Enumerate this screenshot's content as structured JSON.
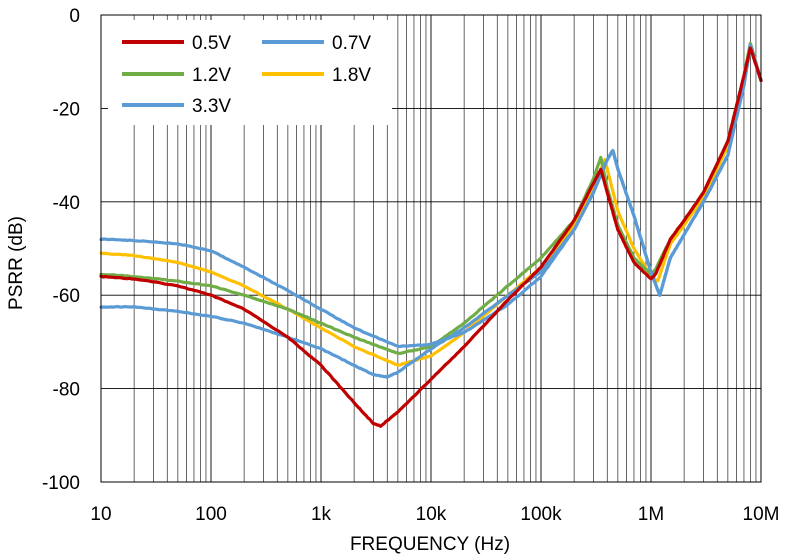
{
  "chart_data": {
    "type": "line",
    "title": "",
    "xlabel": "FREQUENCY (Hz)",
    "ylabel": "PSRR (dB)",
    "x_scale": "log",
    "xlim": [
      10,
      10000000
    ],
    "ylim": [
      -100,
      0
    ],
    "x_ticks": [
      10,
      100,
      1000,
      10000,
      100000,
      1000000,
      10000000
    ],
    "x_tick_labels": [
      "10",
      "100",
      "1k",
      "10k",
      "100k",
      "1M",
      "10M"
    ],
    "y_ticks": [
      0,
      -20,
      -40,
      -60,
      -80,
      -100
    ],
    "y_tick_labels": [
      "0",
      "-20",
      "-40",
      "-60",
      "-80",
      "-100"
    ],
    "grid": true,
    "legend_position": "top-left",
    "series": [
      {
        "name": "0.5V",
        "color": "#c00000",
        "x": [
          10,
          20,
          50,
          100,
          200,
          500,
          1000,
          2000,
          3000,
          3500,
          5000,
          10000,
          20000,
          50000,
          100000,
          200000,
          300000,
          350000,
          400000,
          500000,
          700000,
          1000000,
          1100000,
          1500000,
          2000000,
          3000000,
          5000000,
          7000000,
          8000000,
          10000000
        ],
        "y": [
          -56,
          -56.5,
          -58,
          -60,
          -63,
          -69,
          -75,
          -83,
          -87.5,
          -88,
          -85,
          -78,
          -71,
          -61,
          -54,
          -44,
          -36,
          -33,
          -38,
          -46,
          -53,
          -56.5,
          -55.5,
          -48,
          -44,
          -38,
          -27,
          -13,
          -7,
          -14
        ]
      },
      {
        "name": "0.7V",
        "color": "#5b9bd5",
        "x": [
          10,
          20,
          50,
          100,
          200,
          500,
          1000,
          2000,
          5000,
          10000,
          20000,
          50000,
          100000,
          200000,
          300000,
          400000,
          450000,
          500000,
          700000,
          1000000,
          1200000,
          1500000,
          2000000,
          3000000,
          5000000,
          7000000,
          8000000,
          10000000
        ],
        "y": [
          -48,
          -48.3,
          -49,
          -50.5,
          -54,
          -59,
          -63,
          -67,
          -71,
          -70.5,
          -68,
          -62,
          -56,
          -46,
          -38,
          -31,
          -29,
          -33,
          -43,
          -55,
          -60,
          -52,
          -47,
          -40,
          -30,
          -15,
          -6.5,
          -14
        ]
      },
      {
        "name": "1.2V",
        "color": "#70ad47",
        "x": [
          10,
          20,
          50,
          100,
          200,
          500,
          1000,
          2000,
          5000,
          10000,
          20000,
          50000,
          100000,
          200000,
          300000,
          350000,
          400000,
          500000,
          700000,
          1000000,
          1100000,
          1500000,
          2000000,
          3000000,
          5000000,
          7000000,
          8000000,
          10000000
        ],
        "y": [
          -55.5,
          -56,
          -57,
          -58,
          -60,
          -63,
          -66,
          -69,
          -72.5,
          -71,
          -66,
          -58,
          -52,
          -44,
          -35,
          -30.5,
          -37,
          -45,
          -52,
          -55.5,
          -54.5,
          -48,
          -44,
          -38,
          -27,
          -13,
          -6,
          -14
        ]
      },
      {
        "name": "1.8V",
        "color": "#ffc000",
        "x": [
          10,
          20,
          50,
          100,
          200,
          500,
          1000,
          2000,
          5000,
          10000,
          20000,
          50000,
          100000,
          200000,
          300000,
          380000,
          400000,
          500000,
          700000,
          1000000,
          1150000,
          1500000,
          2000000,
          3000000,
          5000000,
          7000000,
          8000000,
          10000000
        ],
        "y": [
          -51,
          -51.5,
          -53,
          -55,
          -58,
          -63,
          -67,
          -71,
          -75,
          -73,
          -68,
          -60,
          -54,
          -45,
          -37,
          -31,
          -33,
          -42,
          -50,
          -56,
          -57,
          -49,
          -45,
          -39,
          -28,
          -14,
          -6.5,
          -14
        ]
      },
      {
        "name": "3.3V",
        "color": "#5b9bd5",
        "x": [
          10,
          20,
          50,
          100,
          200,
          500,
          1000,
          2000,
          3000,
          4000,
          5000,
          10000,
          20000,
          50000,
          100000,
          200000,
          300000,
          400000,
          450000,
          500000,
          700000,
          1000000,
          1200000,
          1500000,
          2000000,
          3000000,
          5000000,
          7000000,
          8000000,
          10000000
        ],
        "y": [
          -62.5,
          -62.5,
          -63.5,
          -64.5,
          -66,
          -69,
          -71.5,
          -75,
          -77,
          -77.5,
          -76.5,
          -71.5,
          -67,
          -60,
          -55,
          -46,
          -38,
          -31,
          -29,
          -33,
          -43,
          -55,
          -60,
          -52,
          -47,
          -40,
          -30,
          -15,
          -6.5,
          -14
        ]
      }
    ]
  }
}
